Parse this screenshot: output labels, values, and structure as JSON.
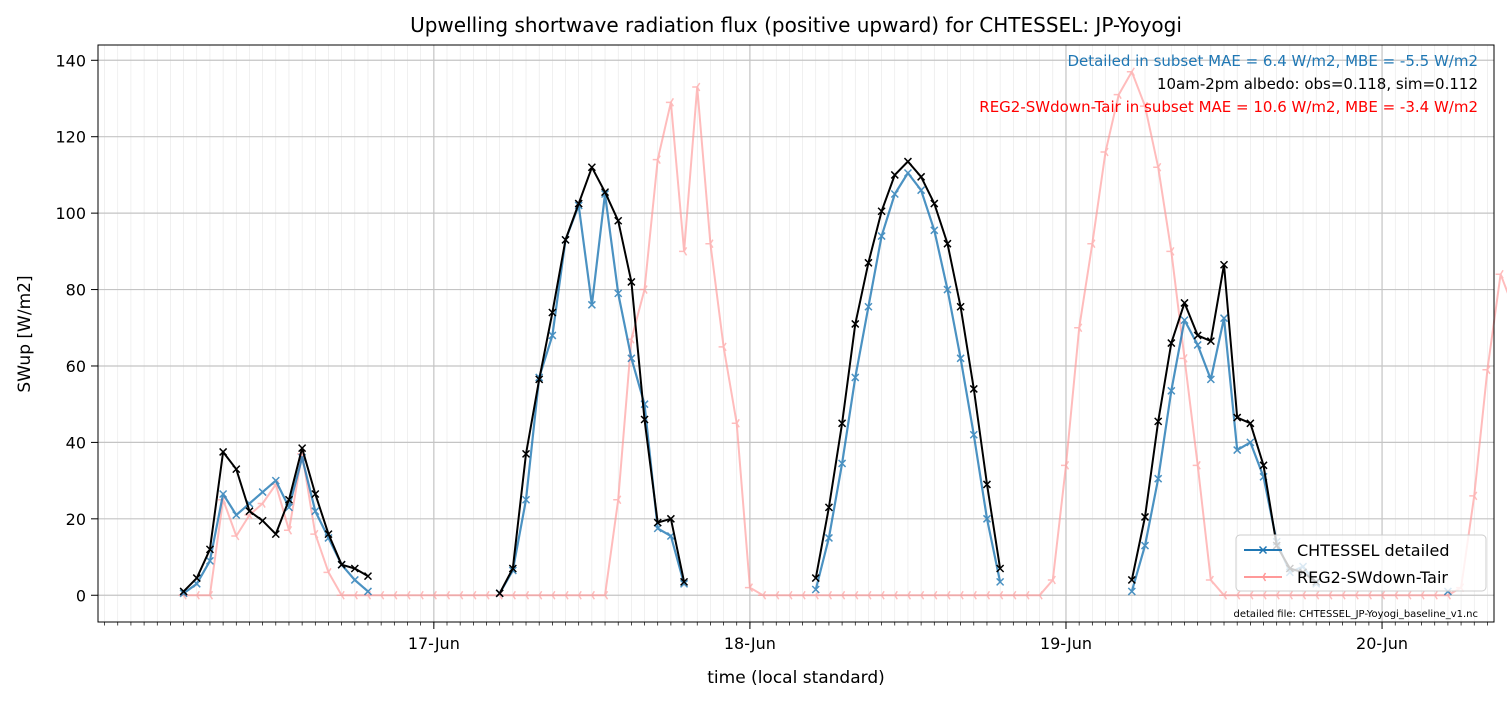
{
  "chart_data": {
    "type": "line",
    "title": "Upwelling shortwave radiation flux (positive upward) for CHTESSEL: JP-Yoyogi",
    "xlabel": "time (local standard)",
    "ylabel": "SWup [W/m2]",
    "x_unit": "hours since 16-Jun 00:00 (local standard)",
    "xlim": [
      -1.5,
      104.5
    ],
    "ylim": [
      -7,
      144
    ],
    "yticks": [
      0,
      20,
      40,
      60,
      80,
      100,
      120,
      140
    ],
    "xticks": [
      {
        "x": 24,
        "label": "17-Jun"
      },
      {
        "x": 48,
        "label": "18-Jun"
      },
      {
        "x": 72,
        "label": "19-Jun"
      },
      {
        "x": 96,
        "label": "20-Jun"
      }
    ],
    "grid": true,
    "legend_position": "lower-right",
    "annotations": [
      {
        "text": "Detailed in subset MAE = 6.4 W/m2, MBE = -5.5 W/m2",
        "color": "#1f77b4"
      },
      {
        "text": "10am-2pm albedo: obs=0.118, sim=0.112",
        "color": "#000000"
      },
      {
        "text": "REG2-SWdown-Tair in subset MAE = 10.6 W/m2, MBE = -3.4 W/m2",
        "color": "#ff0000"
      }
    ],
    "footnote": "detailed file: CHTESSEL_JP-Yoyogi_baseline_v1.nc",
    "series": [
      {
        "name": "REG2-SWdown-Tair",
        "color": "#ff9999",
        "marker": "tri",
        "segments": [
          {
            "x_start": 5,
            "values": [
              0,
              0,
              0,
              25,
              15.5,
              21,
              24,
              29,
              17,
              37,
              16,
              6,
              0,
              0,
              0,
              0,
              0,
              0,
              0,
              0,
              0,
              0,
              0,
              0,
              0,
              0,
              0,
              0,
              0,
              0,
              0,
              0,
              0,
              25,
              67,
              80,
              114,
              129,
              90,
              133,
              92,
              65,
              45,
              2,
              0,
              0,
              0,
              0,
              0,
              0,
              0,
              0,
              0,
              0,
              0,
              0,
              0,
              0,
              0,
              0,
              0,
              0,
              0,
              0,
              0,
              0,
              4,
              34,
              70,
              92,
              116,
              131,
              137,
              128,
              112,
              90,
              62,
              34,
              4,
              0,
              0,
              0,
              0,
              0,
              0,
              0,
              0,
              0,
              0,
              0,
              0,
              0,
              0,
              0,
              0,
              0,
              0,
              2,
              26,
              59,
              84,
              75,
              61,
              72,
              35,
              38,
              26,
              0
            ]
          }
        ]
      },
      {
        "name": "CHTESSEL detailed",
        "color": "#1f77b4",
        "marker": "x",
        "segments": [
          {
            "x_start": 5,
            "values": [
              0.5,
              3,
              9,
              26.5,
              21,
              24,
              27,
              30,
              23,
              36,
              22,
              15,
              8,
              4,
              1
            ]
          },
          {
            "x_start": 29,
            "values": [
              0.5,
              6.5,
              25,
              57,
              68,
              93,
              102,
              76,
              105,
              79,
              62,
              50,
              17.5,
              15.5,
              3
            ]
          },
          {
            "x_start": 53,
            "values": [
              1.5,
              15,
              34.5,
              57,
              75.5,
              94,
              105,
              110.5,
              106,
              95.5,
              80,
              62,
              42,
              20,
              3.5
            ]
          },
          {
            "x_start": 77,
            "values": [
              1,
              13,
              30.5,
              53.5,
              72,
              65.5,
              56.5,
              72.5,
              38,
              40,
              31,
              14,
              6,
              7.5,
              3
            ]
          },
          {
            "x_start": 101,
            "values": [
              1
            ]
          }
        ]
      },
      {
        "name": "observed",
        "color": "#000000",
        "marker": "x",
        "segments": [
          {
            "x_start": 5,
            "values": [
              1,
              4.5,
              12,
              37.5,
              33,
              22,
              19.5,
              16,
              25,
              38.5,
              26.5,
              16,
              8,
              7,
              5
            ]
          },
          {
            "x_start": 29,
            "values": [
              0.5,
              7,
              37,
              56.5,
              74,
              93,
              102.5,
              112,
              105.5,
              98,
              82,
              46,
              19,
              20,
              3.5
            ]
          },
          {
            "x_start": 53,
            "values": [
              4.5,
              23,
              45,
              71,
              87,
              100.5,
              110,
              113.5,
              109.5,
              102.5,
              92,
              75.5,
              54,
              29,
              7
            ]
          },
          {
            "x_start": 77,
            "values": [
              4,
              20.5,
              45.5,
              66,
              76.5,
              68,
              66.5,
              86.5,
              46.5,
              45,
              34,
              13,
              7,
              6,
              3.5
            ]
          }
        ]
      }
    ]
  },
  "legend": [
    {
      "label": "CHTESSEL detailed",
      "color": "#1f77b4"
    },
    {
      "label": "REG2-SWdown-Tair",
      "color": "#ff9999"
    }
  ]
}
